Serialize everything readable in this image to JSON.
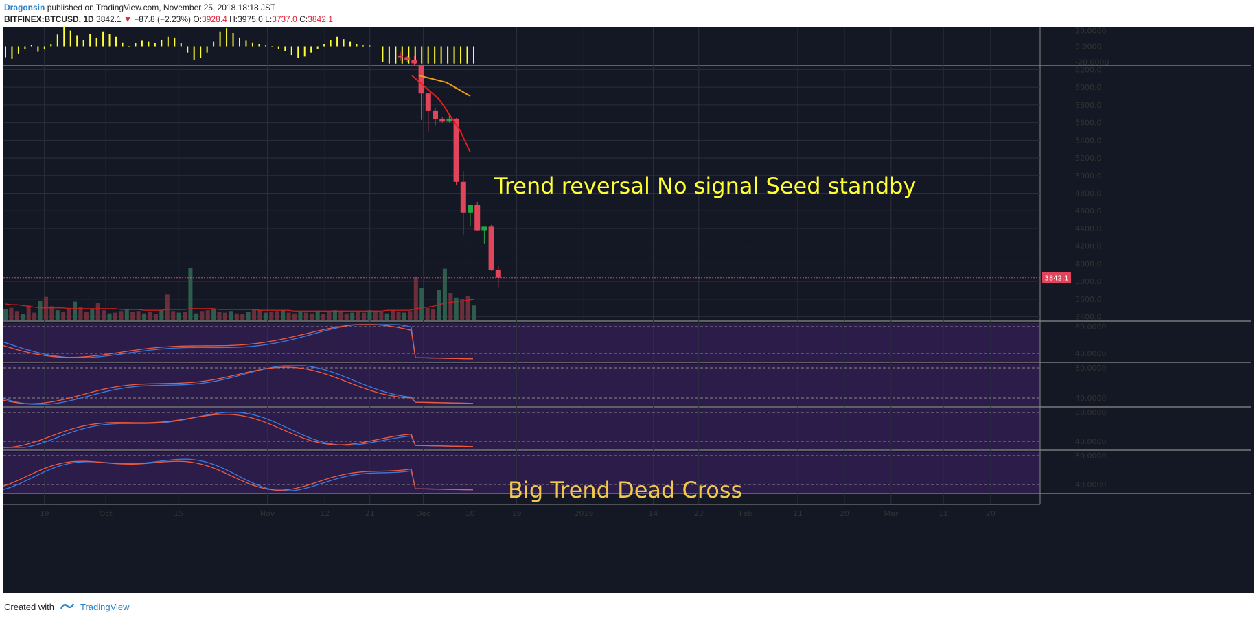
{
  "header": {
    "author": "Dragonsin",
    "published": "published on TradingView.com, November 25, 2018 18:18 JST",
    "symbol": "BITFINEX:BTCUSD, 1D",
    "last": "3842.1",
    "change_arrow": "▼",
    "change": "−87.8 (−2.23%)",
    "o_label": "O:",
    "o_value": "3928.4",
    "h_label": "H:",
    "h_value": "3975.0",
    "l_label": "L:",
    "l_value": "3737.0",
    "c_label": "C:",
    "c_value": "3842.1"
  },
  "footer": {
    "created_with": "Created with",
    "brand": "TradingView"
  },
  "colors": {
    "background": "#141824",
    "panel": "#2b1c4a",
    "up": "#26a641",
    "down": "#e0455b",
    "annotation1": "#ffff33",
    "annotation2": "#f2c94c",
    "blue_line": "#3b7be0",
    "red_line": "#f05a3c"
  },
  "chart_data": {
    "type": "candlestick",
    "annotations": [
      "Trend reversal No signal Seed standby",
      "Big Trend Dead Cross"
    ],
    "price_axis": {
      "ticks": [
        "6200.0",
        "6000.0",
        "5800.0",
        "5600.0",
        "5400.0",
        "5200.0",
        "5000.0",
        "4800.0",
        "4600.0",
        "4400.0",
        "4200.0",
        "4000.0",
        "3800.0",
        "3600.0",
        "3400.0"
      ],
      "ylim": [
        3350,
        6250
      ],
      "last_price_label": "3842.1",
      "last_price": 3842.1
    },
    "macd_axis": {
      "ticks": [
        "20.0000",
        "0.0000",
        "-20.0000"
      ],
      "ylim": [
        -24,
        24
      ]
    },
    "osc_axis": {
      "ticks": [
        "80.0000",
        "40.0000"
      ]
    },
    "x_tick_labels": [
      "19",
      "Oct",
      "15",
      "Nov",
      "12",
      "21",
      "Dec",
      "10",
      "19",
      "2019",
      "14",
      "23",
      "Feb",
      "11",
      "20",
      "Mar",
      "11",
      "20"
    ],
    "candles": [
      {
        "date": "2018-11-11",
        "o": 6360,
        "h": 6400,
        "l": 6300,
        "c": 6340
      },
      {
        "date": "2018-11-12",
        "o": 6340,
        "h": 6360,
        "l": 6280,
        "c": 6310
      },
      {
        "date": "2018-11-13",
        "o": 6310,
        "h": 6350,
        "l": 6250,
        "c": 6270
      },
      {
        "date": "2018-11-14",
        "o": 6250,
        "h": 6260,
        "l": 5630,
        "c": 5930
      },
      {
        "date": "2018-11-15",
        "o": 5930,
        "h": 5910,
        "l": 5500,
        "c": 5730
      },
      {
        "date": "2018-11-16",
        "o": 5730,
        "h": 5770,
        "l": 5570,
        "c": 5640
      },
      {
        "date": "2018-11-17",
        "o": 5640,
        "h": 5660,
        "l": 5600,
        "c": 5610
      },
      {
        "date": "2018-11-18",
        "o": 5610,
        "h": 5690,
        "l": 5600,
        "c": 5645
      },
      {
        "date": "2018-11-19",
        "o": 5645,
        "h": 5650,
        "l": 4890,
        "c": 4930
      },
      {
        "date": "2018-11-20",
        "o": 4930,
        "h": 5050,
        "l": 4320,
        "c": 4580
      },
      {
        "date": "2018-11-21",
        "o": 4580,
        "h": 4670,
        "l": 4430,
        "c": 4670
      },
      {
        "date": "2018-11-22",
        "o": 4670,
        "h": 4700,
        "l": 4370,
        "c": 4380
      },
      {
        "date": "2018-11-23",
        "o": 4380,
        "h": 4420,
        "l": 4230,
        "c": 4420
      },
      {
        "date": "2018-11-24",
        "o": 4420,
        "h": 4440,
        "l": 3920,
        "c": 3930
      },
      {
        "date": "2018-11-25",
        "o": 3928.4,
        "h": 3975.0,
        "l": 3737.0,
        "c": 3842.1
      }
    ],
    "macd_histogram": [
      -14,
      -16,
      -9,
      -4,
      2,
      -7,
      -4,
      3,
      15,
      26,
      20,
      14,
      8,
      16,
      11,
      19,
      16,
      12,
      5,
      -1,
      4,
      7,
      6,
      4,
      8,
      12,
      11,
      4,
      -8,
      -17,
      -15,
      -8,
      6,
      19,
      23,
      17,
      11,
      7,
      5,
      3,
      1,
      -1,
      -3,
      -6,
      -11,
      -15,
      -13,
      -8,
      -3,
      3,
      8,
      12,
      9,
      6,
      3,
      1,
      1,
      0,
      -20,
      -22,
      -22,
      -22,
      -22,
      -22,
      -22,
      -22,
      -22,
      -22,
      -22,
      -22,
      -22,
      -22,
      -22
    ],
    "volume": [
      14,
      16,
      12,
      8,
      19,
      10,
      25,
      30,
      18,
      13,
      11,
      16,
      24,
      17,
      11,
      14,
      22,
      13,
      9,
      10,
      12,
      14,
      11,
      12,
      9,
      11,
      8,
      13,
      33,
      12,
      10,
      11,
      67,
      9,
      12,
      13,
      15,
      11,
      10,
      12,
      9,
      8,
      11,
      14,
      13,
      10,
      11,
      12,
      13,
      10,
      9,
      11,
      10,
      9,
      12,
      8,
      11,
      13,
      12,
      9,
      10,
      11,
      10,
      13,
      12,
      11,
      9,
      13,
      11,
      10,
      12,
      55,
      42,
      16,
      14,
      39,
      66,
      35,
      29,
      28,
      31,
      19
    ],
    "volume_ma": [
      21,
      20,
      20,
      19,
      18,
      17,
      16,
      16,
      16,
      16,
      16,
      15,
      15,
      15,
      15,
      15,
      15,
      15,
      15,
      15,
      14,
      14,
      14,
      14,
      13,
      13,
      13,
      13,
      14,
      14,
      14,
      14,
      15,
      15,
      15,
      15,
      15,
      14,
      14,
      14,
      14,
      14,
      14,
      14,
      13,
      13,
      13,
      13,
      13,
      13,
      12,
      12,
      12,
      12,
      12,
      12,
      12,
      12,
      12,
      12,
      12,
      12,
      12,
      12,
      12,
      12,
      13,
      13,
      13,
      13,
      13,
      15,
      16,
      17,
      18,
      20,
      22,
      23,
      24,
      25,
      26,
      27
    ]
  }
}
